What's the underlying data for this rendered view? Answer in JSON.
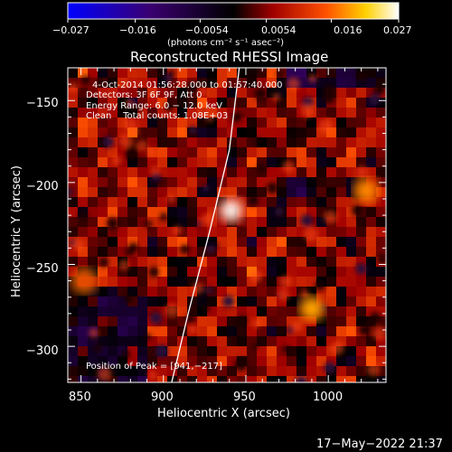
{
  "colorbar": {
    "tick_labels": [
      "−0.027",
      "−0.016",
      "−0.0054",
      "0.0054",
      "0.016",
      "0.027"
    ],
    "range": [
      -0.027,
      0.027
    ],
    "unit_label": "(photons cm⁻² s⁻¹ asec⁻²)",
    "colors": [
      "#0000ff",
      "#4b0082",
      "#000000",
      "#b00000",
      "#ff6000",
      "#ffff00",
      "#ffffff"
    ]
  },
  "plot": {
    "title": "Reconstructed RHESSI Image",
    "xlabel": "Heliocentric X (arcsec)",
    "ylabel": "Heliocentric Y (arcsec)",
    "x_ticks": [
      "850",
      "900",
      "950",
      "1000"
    ],
    "y_ticks": [
      "−150",
      "−200",
      "−250",
      "−300"
    ],
    "annotation_lines": [
      "4-Oct-2014 01:56:28.000 to 01:57:40.000",
      "Detectors: 3F 6F 9F, Att 0",
      "Energy Range: 6.0 − 12.0 keV",
      "Clean    Total counts: 1.08E+03"
    ],
    "peak_label": "Position of Peak = [941,−217]"
  },
  "timestamp": "17−May−2022 21:37",
  "chart_data": {
    "type": "heatmap",
    "title": "Reconstructed RHESSI Image",
    "xlabel": "Heliocentric X (arcsec)",
    "ylabel": "Heliocentric Y (arcsec)",
    "xlim": [
      842,
      1035
    ],
    "ylim": [
      -322,
      -130
    ],
    "colorbar_range": [
      -0.027,
      0.027
    ],
    "colorbar_ticks": [
      -0.027,
      -0.016,
      -0.0054,
      0.0054,
      0.016,
      0.027
    ],
    "peaks": [
      {
        "x": 941,
        "y": -217,
        "value": 0.027
      },
      {
        "x": 990,
        "y": -277,
        "value": 0.02
      },
      {
        "x": 1023,
        "y": -205,
        "value": 0.018
      },
      {
        "x": 852,
        "y": -260,
        "value": 0.012
      }
    ],
    "limb_curve": [
      [
        946,
        -130
      ],
      [
        940,
        -180
      ],
      [
        928,
        -230
      ],
      [
        915,
        -280
      ],
      [
        905,
        -322
      ]
    ]
  }
}
